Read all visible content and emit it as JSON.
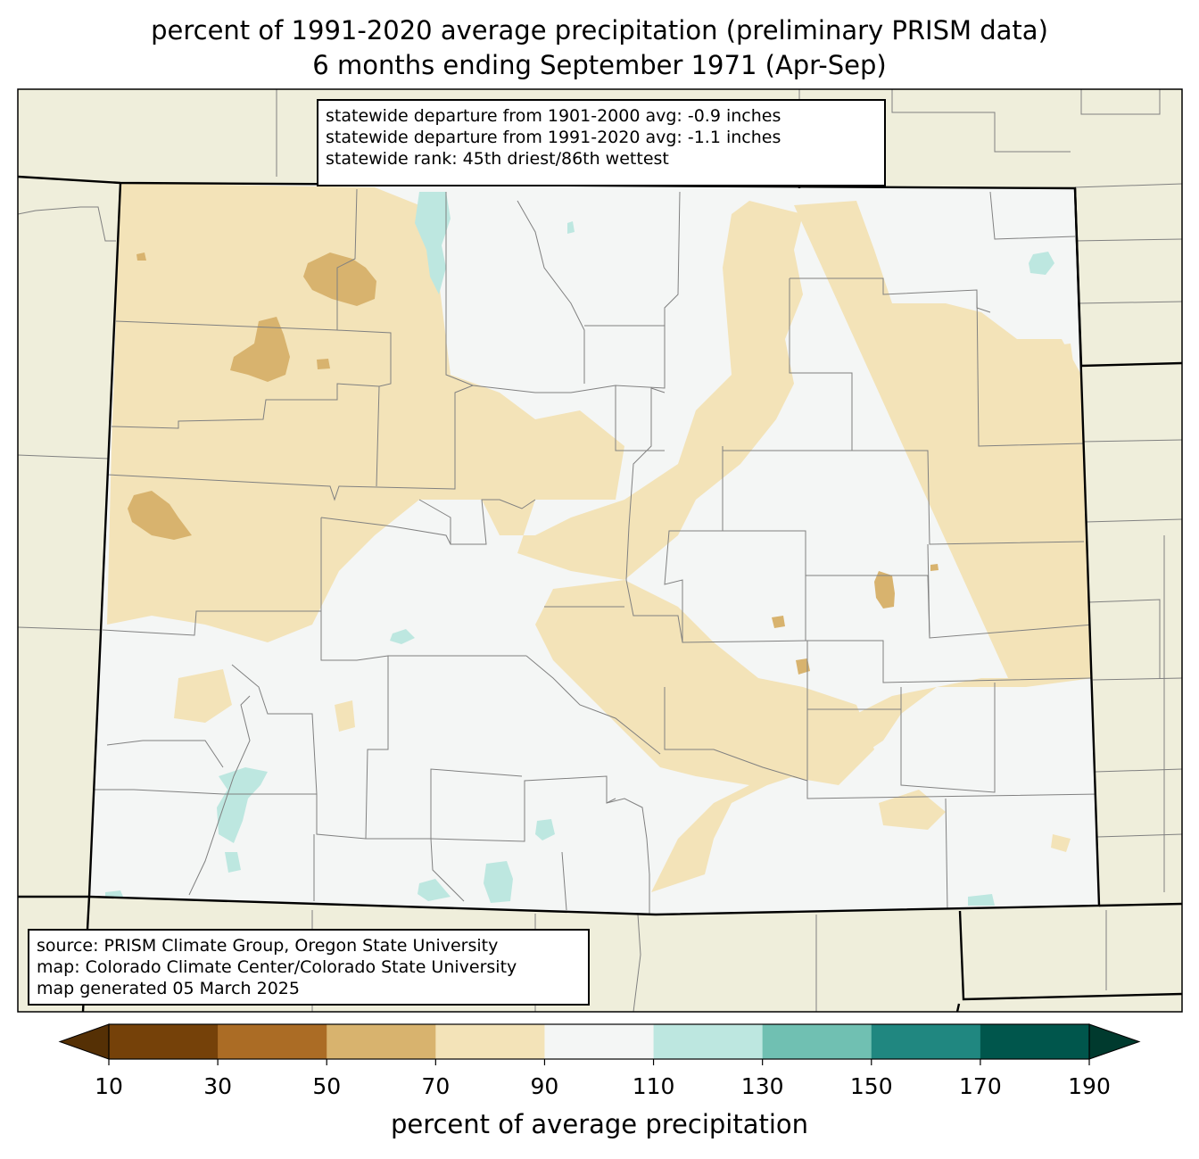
{
  "title": {
    "line1": "percent of 1991-2020 average precipitation (preliminary PRISM data)",
    "line2": "6 months ending September 1971 (Apr-Sep)"
  },
  "stats": {
    "line1": "statewide departure from 1901-2000 avg: -0.9 inches",
    "line2": "statewide departure from 1991-2020 avg: -1.1 inches",
    "line3": "statewide rank: 45th driest/86th wettest"
  },
  "source": {
    "line1": "source: PRISM Climate Group, Oregon State University",
    "line2": "map: Colorado Climate Center/Colorado State University",
    "line3": "map generated 05 March 2025"
  },
  "colorbar": {
    "label": "percent of average precipitation",
    "ticks": [
      "10",
      "30",
      "50",
      "70",
      "90",
      "110",
      "130",
      "150",
      "170",
      "190"
    ],
    "bins": [
      {
        "range": "10-30",
        "color": "#754109"
      },
      {
        "range": "30-50",
        "color": "#ab6c25"
      },
      {
        "range": "50-70",
        "color": "#d8b36e"
      },
      {
        "range": "70-90",
        "color": "#f3e3b8"
      },
      {
        "range": "90-110",
        "color": "#f4f6f5"
      },
      {
        "range": "110-130",
        "color": "#bde7e0"
      },
      {
        "range": "130-150",
        "color": "#70c0b2"
      },
      {
        "range": "150-170",
        "color": "#208780"
      },
      {
        "range": "170-190",
        "color": "#00564c"
      }
    ],
    "under_color": "#553005",
    "over_color": "#003a2e"
  },
  "colors": {
    "background_land": "#efeedb",
    "state_border": "#000000",
    "county_border": "#808080"
  }
}
